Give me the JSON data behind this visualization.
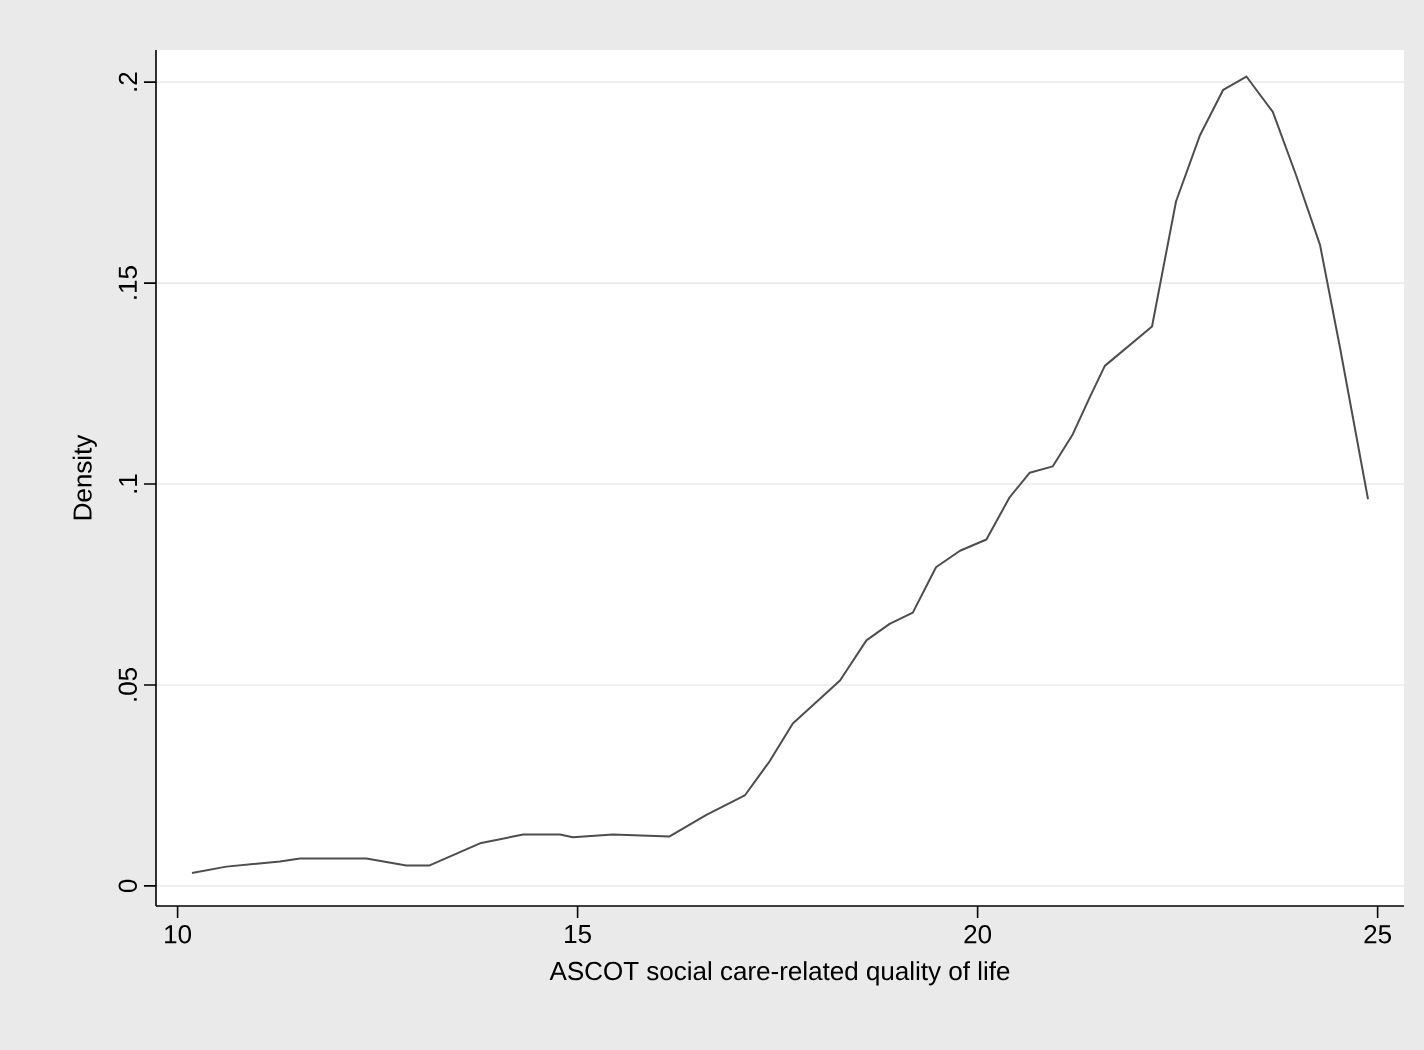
{
  "chart_data": {
    "type": "line",
    "xlabel": "ASCOT social care-related quality of life",
    "ylabel": "Density",
    "x": [
      10.18,
      10.61,
      11.28,
      11.53,
      12.36,
      12.86,
      13.15,
      13.78,
      14.32,
      14.78,
      14.94,
      15.44,
      16.15,
      16.61,
      17.09,
      17.4,
      17.69,
      18.28,
      18.61,
      18.9,
      19.19,
      19.48,
      19.78,
      20.11,
      20.4,
      20.65,
      20.94,
      21.19,
      21.4,
      21.59,
      22.18,
      22.48,
      22.78,
      23.07,
      23.36,
      23.69,
      23.98,
      24.28,
      24.53,
      24.88
    ],
    "series": [
      {
        "color": "#4d4d4d",
        "values": [
          0.0032,
          0.0048,
          0.0061,
          0.0068,
          0.0068,
          0.0051,
          0.0051,
          0.0106,
          0.0128,
          0.0128,
          0.0121,
          0.0128,
          0.0123,
          0.0177,
          0.0225,
          0.031,
          0.0404,
          0.0511,
          0.0611,
          0.0652,
          0.068,
          0.0793,
          0.0834,
          0.0862,
          0.0967,
          0.1028,
          0.1044,
          0.1124,
          0.1215,
          0.1294,
          0.1392,
          0.1703,
          0.1868,
          0.1981,
          0.2014,
          0.1926,
          0.1769,
          0.1595,
          0.1339,
          0.0962
        ]
      }
    ],
    "xlim": [
      9.73,
      25.33
    ],
    "ylim": [
      -0.005,
      0.208
    ],
    "xticks": [
      10,
      15,
      20,
      25
    ],
    "yticks": [
      0,
      {
        "value": 0.05,
        "label": ".05"
      },
      {
        "value": 0.1,
        "label": ".1"
      },
      {
        "value": 0.15,
        "label": ".15"
      },
      {
        "value": 0.2,
        "label": ".2"
      }
    ],
    "grid": "y",
    "marker": "none",
    "line_style": "solid"
  }
}
